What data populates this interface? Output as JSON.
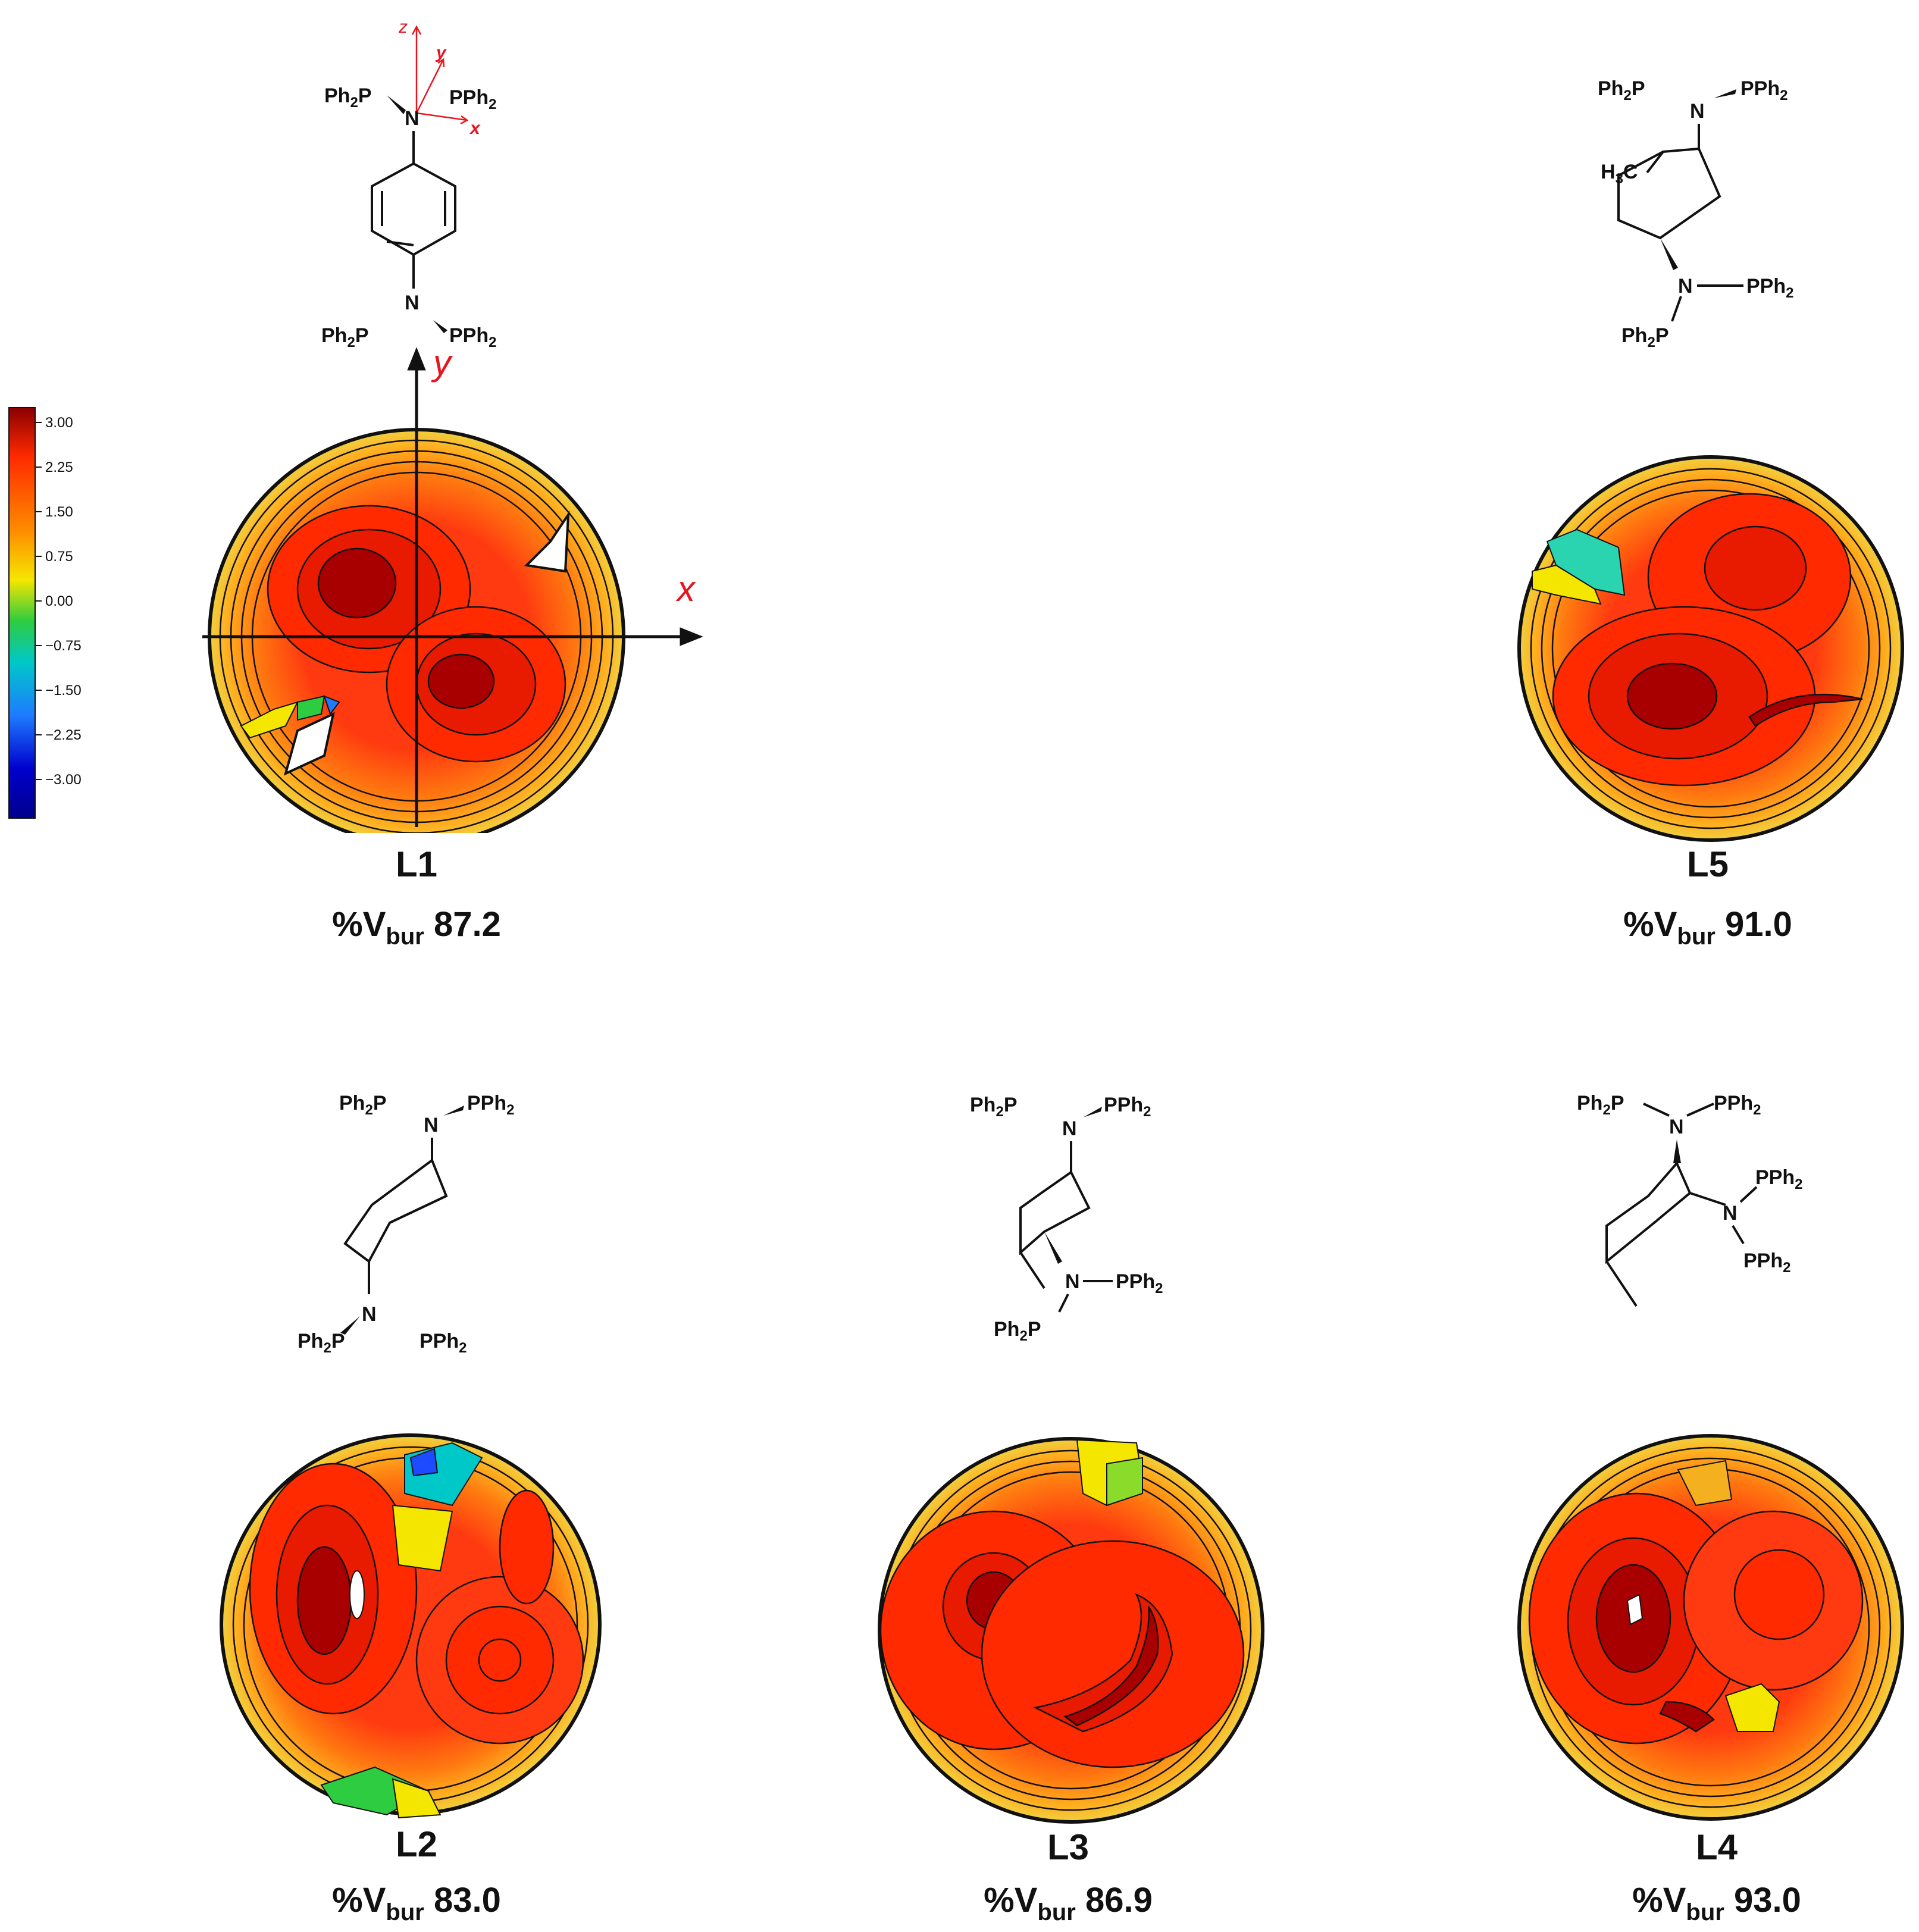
{
  "colorbar": {
    "ticks": [
      "3.00",
      "2.25",
      "1.50",
      "0.75",
      "0.00",
      "−0.75",
      "−1.50",
      "−2.25",
      "−3.00"
    ],
    "colors_top_to_bottom": [
      "#8b0000",
      "#ff2a00",
      "#ff8c00",
      "#f5e600",
      "#2ecc40",
      "#00c8c8",
      "#1e7bff",
      "#0000cd",
      "#00008b"
    ]
  },
  "axes": {
    "x_label": "x",
    "y_label": "y",
    "z_label": "z",
    "color": "#e8141e"
  },
  "chem": {
    "ph2p": "Ph",
    "pph": "PPh",
    "sub2": "2",
    "p": "P",
    "n": "N",
    "h3c_h": "H",
    "h3c_c": "C",
    "sub3": "3"
  },
  "ligands": [
    {
      "id": "L1",
      "label": "L1",
      "vbur_prefix": "%V",
      "vbur_sub": "bur",
      "vbur_value": "87.2"
    },
    {
      "id": "L5",
      "label": "L5",
      "vbur_prefix": "%V",
      "vbur_sub": "bur",
      "vbur_value": "91.0"
    },
    {
      "id": "L2",
      "label": "L2",
      "vbur_prefix": "%V",
      "vbur_sub": "bur",
      "vbur_value": "83.0"
    },
    {
      "id": "L3",
      "label": "L3",
      "vbur_prefix": "%V",
      "vbur_sub": "bur",
      "vbur_value": "86.9"
    },
    {
      "id": "L4",
      "label": "L4",
      "vbur_prefix": "%V",
      "vbur_sub": "bur",
      "vbur_value": "93.0"
    }
  ]
}
